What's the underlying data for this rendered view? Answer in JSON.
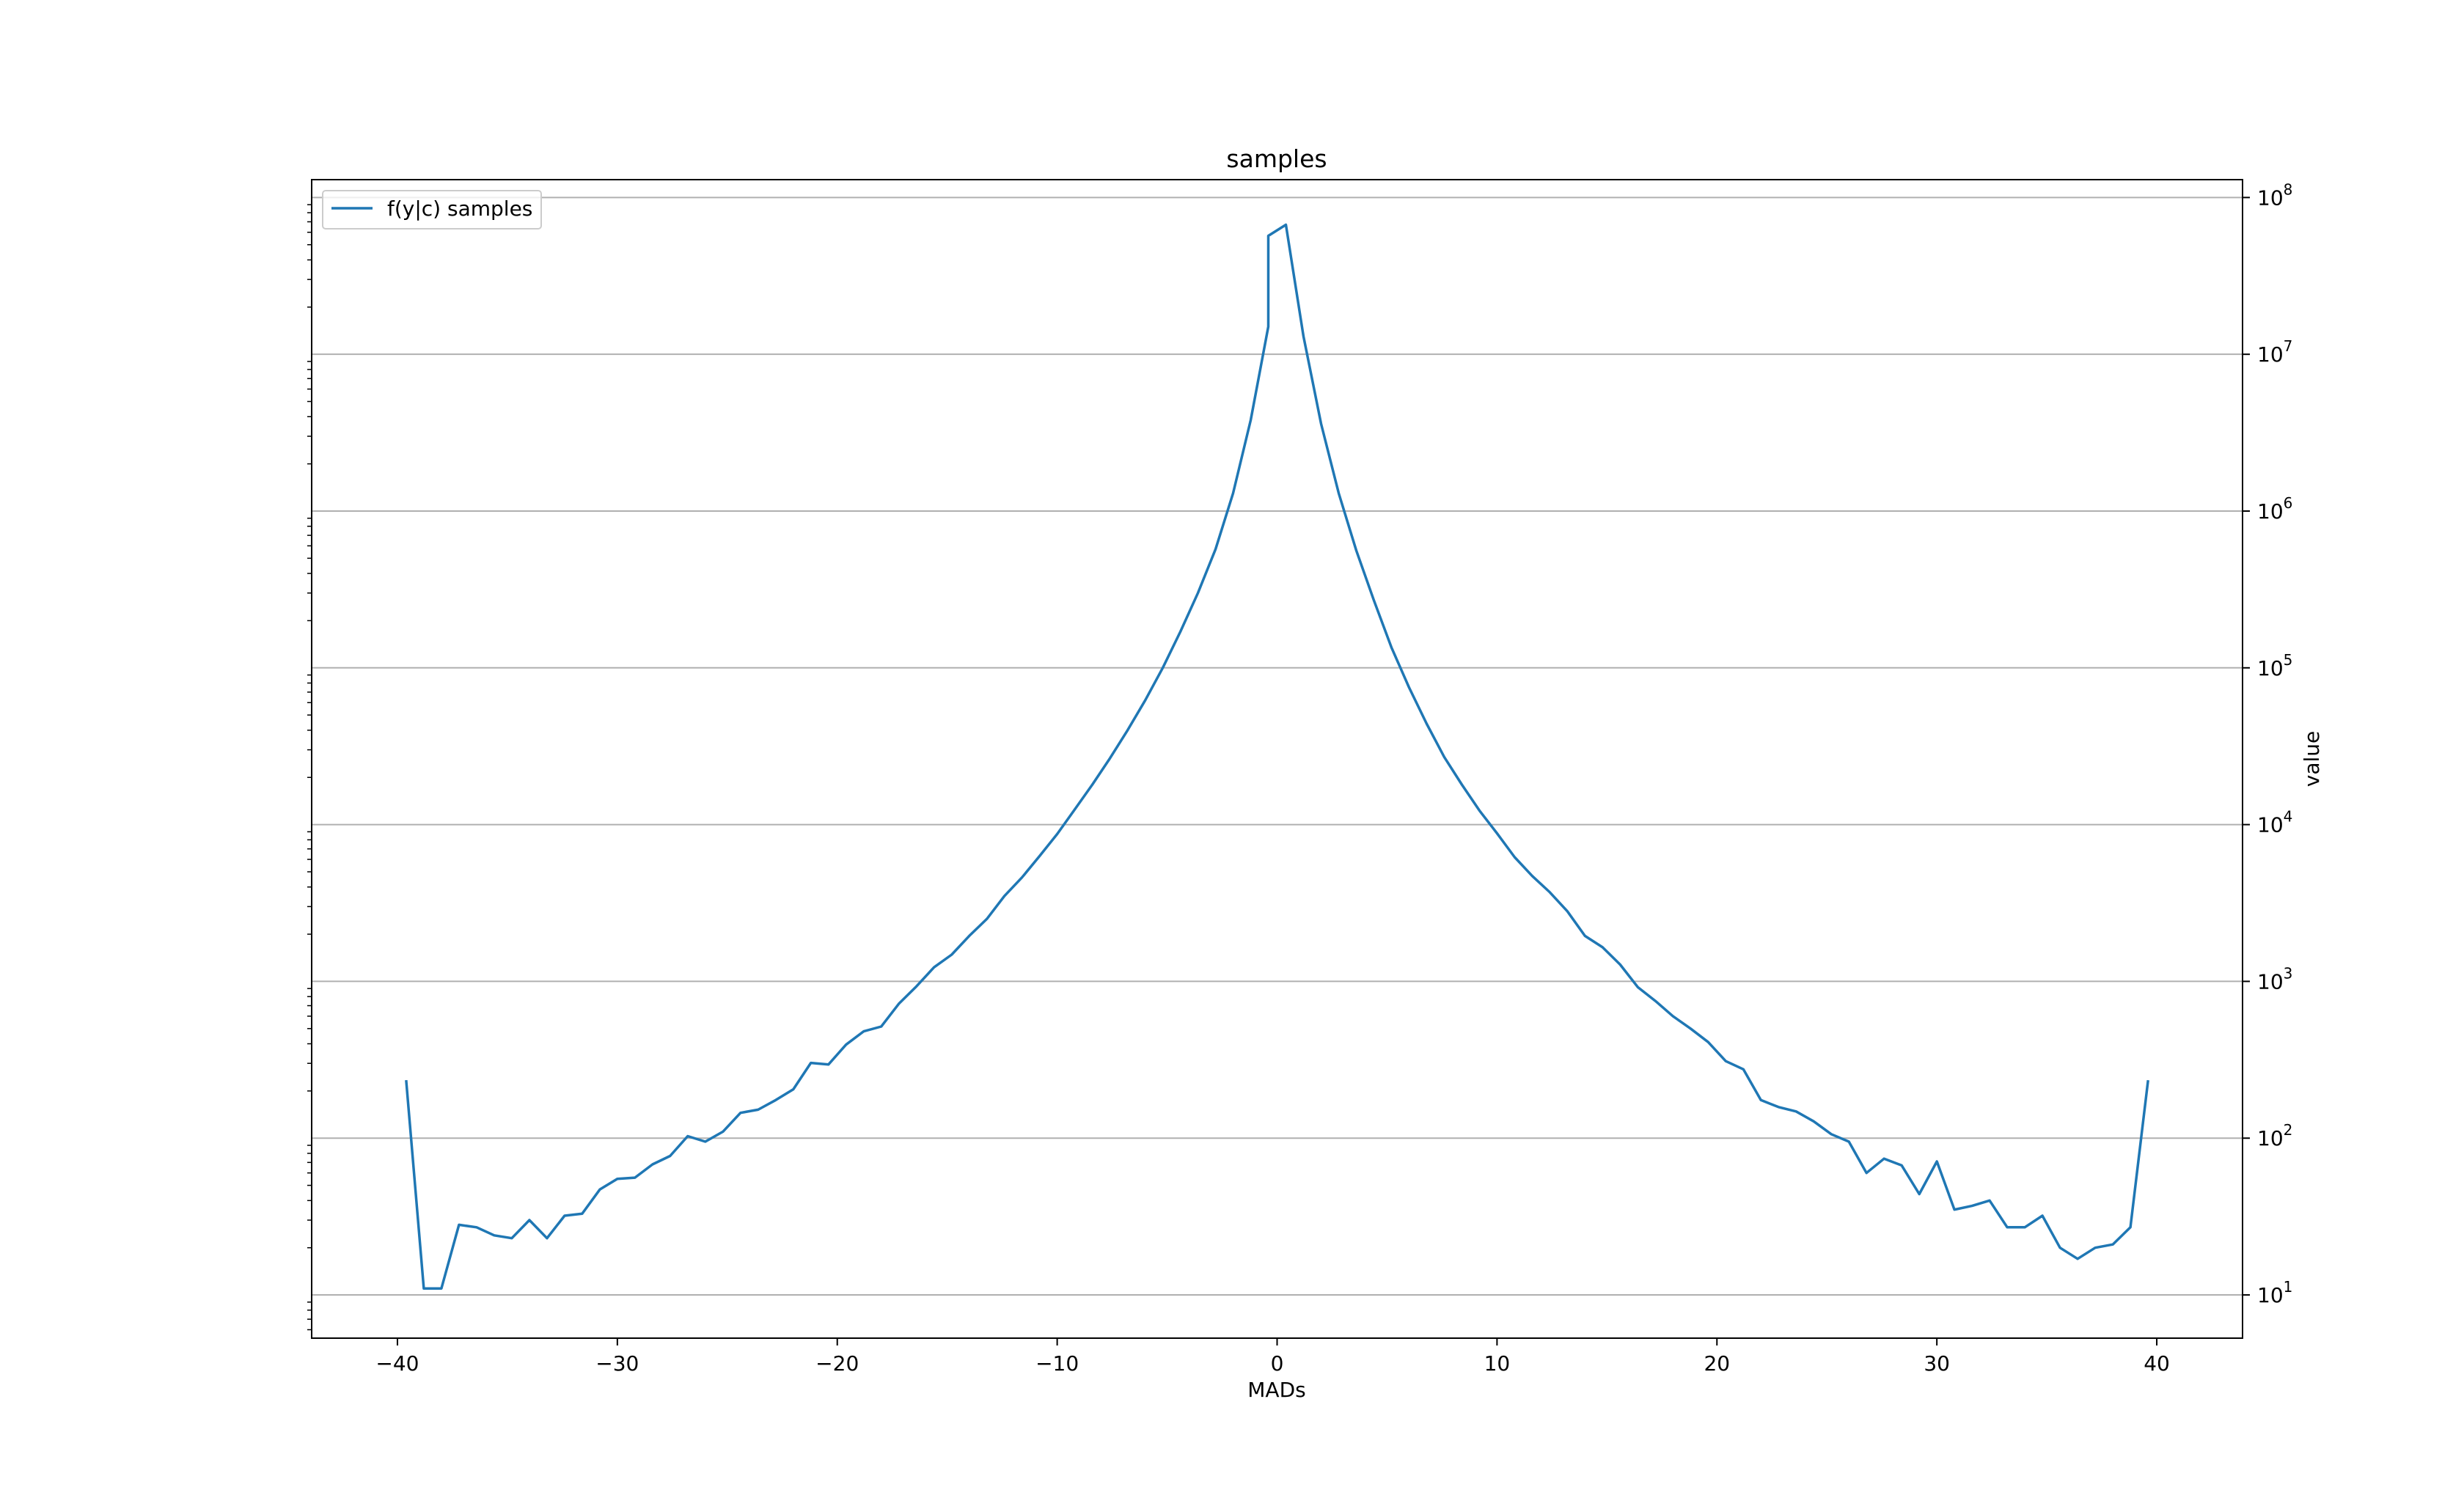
{
  "chart_data": {
    "type": "line",
    "title": "samples",
    "xlabel": "MADs",
    "ylabel": "value",
    "yscale": "log",
    "yaxis_position": "right",
    "grid": "horizontal major lines at decades",
    "legend_placement": "top-left",
    "xlim": [
      -43.9,
      43.9
    ],
    "ylim": [
      5.3,
      130000000
    ],
    "x_ticks": [
      {
        "value": -40,
        "label": "−40"
      },
      {
        "value": -30,
        "label": "−30"
      },
      {
        "value": -20,
        "label": "−20"
      },
      {
        "value": -10,
        "label": "−10"
      },
      {
        "value": 0,
        "label": "0"
      },
      {
        "value": 10,
        "label": "10"
      },
      {
        "value": 20,
        "label": "20"
      },
      {
        "value": 30,
        "label": "30"
      },
      {
        "value": 40,
        "label": "40"
      }
    ],
    "y_ticks": [
      {
        "value": 10,
        "base": "10",
        "exp": "1"
      },
      {
        "value": 100,
        "base": "10",
        "exp": "2"
      },
      {
        "value": 1000,
        "base": "10",
        "exp": "3"
      },
      {
        "value": 10000,
        "base": "10",
        "exp": "4"
      },
      {
        "value": 100000,
        "base": "10",
        "exp": "5"
      },
      {
        "value": 1000000,
        "base": "10",
        "exp": "6"
      },
      {
        "value": 10000000,
        "base": "10",
        "exp": "7"
      },
      {
        "value": 100000000,
        "base": "10",
        "exp": "8"
      }
    ],
    "series": [
      {
        "name": "f(y|c) samples",
        "color": "#1f77b4",
        "points": [
          [
            -39.6,
            230
          ],
          [
            -38.8,
            11
          ],
          [
            -38.0,
            11
          ],
          [
            -37.2,
            28
          ],
          [
            -36.4,
            27
          ],
          [
            -35.6,
            24
          ],
          [
            -34.8,
            23
          ],
          [
            -34.0,
            30
          ],
          [
            -33.2,
            23
          ],
          [
            -32.4,
            32
          ],
          [
            -31.6,
            33
          ],
          [
            -30.8,
            47
          ],
          [
            -30.0,
            55
          ],
          [
            -29.2,
            56
          ],
          [
            -28.4,
            68
          ],
          [
            -27.6,
            77
          ],
          [
            -26.8,
            103
          ],
          [
            -26.0,
            95
          ],
          [
            -25.2,
            110
          ],
          [
            -24.4,
            145
          ],
          [
            -23.6,
            152
          ],
          [
            -22.8,
            175
          ],
          [
            -22.0,
            205
          ],
          [
            -21.2,
            302
          ],
          [
            -20.4,
            295
          ],
          [
            -19.6,
            395
          ],
          [
            -18.8,
            480
          ],
          [
            -18.0,
            515
          ],
          [
            -17.2,
            720
          ],
          [
            -16.4,
            930
          ],
          [
            -15.6,
            1230
          ],
          [
            -14.8,
            1480
          ],
          [
            -14.0,
            1950
          ],
          [
            -13.2,
            2500
          ],
          [
            -12.4,
            3500
          ],
          [
            -11.6,
            4600
          ],
          [
            -10.8,
            6300
          ],
          [
            -10.0,
            8700
          ],
          [
            -9.2,
            12500
          ],
          [
            -8.4,
            18000
          ],
          [
            -7.6,
            26500
          ],
          [
            -6.8,
            40000
          ],
          [
            -6.0,
            62000
          ],
          [
            -5.2,
            100000
          ],
          [
            -4.4,
            170000
          ],
          [
            -3.6,
            300000
          ],
          [
            -2.8,
            570000
          ],
          [
            -2.0,
            1300000
          ],
          [
            -1.2,
            3800000
          ],
          [
            -0.4,
            15000000
          ],
          [
            -0.4,
            57000000
          ],
          [
            0.4,
            67000000
          ],
          [
            1.2,
            13000000
          ],
          [
            2.0,
            3600000
          ],
          [
            2.8,
            1300000
          ],
          [
            3.6,
            560000
          ],
          [
            4.4,
            270000
          ],
          [
            5.2,
            135000
          ],
          [
            6.0,
            75000
          ],
          [
            6.8,
            44000
          ],
          [
            7.6,
            27000
          ],
          [
            8.4,
            18000
          ],
          [
            9.2,
            12300
          ],
          [
            10.0,
            8800
          ],
          [
            10.8,
            6200
          ],
          [
            11.6,
            4700
          ],
          [
            12.4,
            3700
          ],
          [
            13.2,
            2800
          ],
          [
            14.0,
            1950
          ],
          [
            14.8,
            1650
          ],
          [
            15.6,
            1280
          ],
          [
            16.4,
            920
          ],
          [
            17.2,
            750
          ],
          [
            18.0,
            600
          ],
          [
            18.8,
            500
          ],
          [
            19.6,
            410
          ],
          [
            20.4,
            310
          ],
          [
            21.2,
            275
          ],
          [
            22.0,
            175
          ],
          [
            22.8,
            158
          ],
          [
            23.6,
            148
          ],
          [
            24.4,
            128
          ],
          [
            25.2,
            106
          ],
          [
            26.0,
            95
          ],
          [
            26.8,
            60
          ],
          [
            27.6,
            74
          ],
          [
            28.4,
            67
          ],
          [
            29.2,
            44
          ],
          [
            30.0,
            71
          ],
          [
            30.8,
            35
          ],
          [
            31.6,
            37
          ],
          [
            32.4,
            40
          ],
          [
            33.2,
            27
          ],
          [
            34.0,
            27
          ],
          [
            34.8,
            32
          ],
          [
            35.6,
            20
          ],
          [
            36.4,
            17
          ],
          [
            37.2,
            20
          ],
          [
            38.0,
            21
          ],
          [
            38.8,
            27
          ],
          [
            39.6,
            230
          ]
        ]
      }
    ]
  }
}
